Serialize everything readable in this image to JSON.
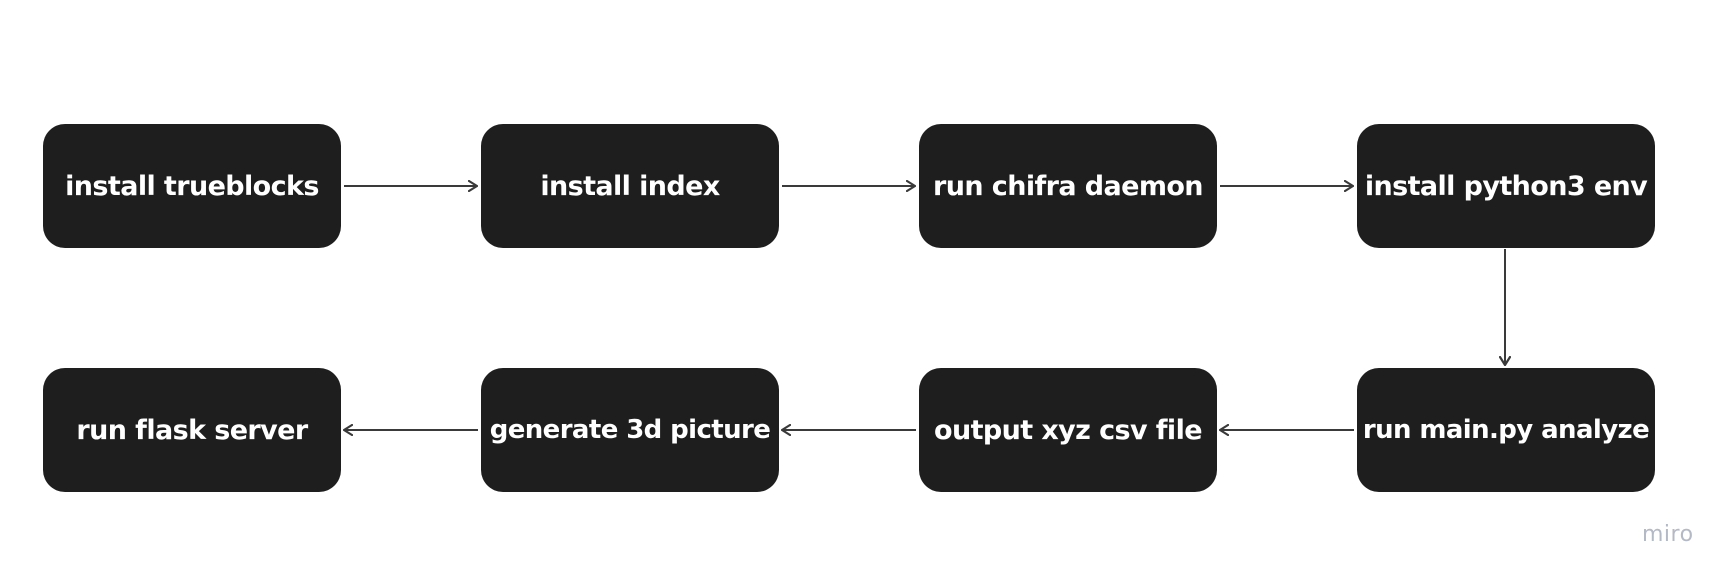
{
  "diagram": {
    "nodes": [
      {
        "id": "n1",
        "label": "install trueblocks"
      },
      {
        "id": "n2",
        "label": "install index"
      },
      {
        "id": "n3",
        "label": "run chifra daemon"
      },
      {
        "id": "n4",
        "label": "install python3 env"
      },
      {
        "id": "n5",
        "label": "run main.py analyze"
      },
      {
        "id": "n6",
        "label": "output xyz csv file"
      },
      {
        "id": "n7",
        "label": "generate 3d picture"
      },
      {
        "id": "n8",
        "label": "run flask server"
      }
    ],
    "edges": [
      {
        "from": "n1",
        "to": "n2"
      },
      {
        "from": "n2",
        "to": "n3"
      },
      {
        "from": "n3",
        "to": "n4"
      },
      {
        "from": "n4",
        "to": "n5"
      },
      {
        "from": "n5",
        "to": "n6"
      },
      {
        "from": "n6",
        "to": "n7"
      },
      {
        "from": "n7",
        "to": "n8"
      }
    ],
    "node_color": "#1e1e1e",
    "text_color": "#ffffff",
    "arrow_color": "#3a3a3a"
  },
  "watermark": "miro"
}
